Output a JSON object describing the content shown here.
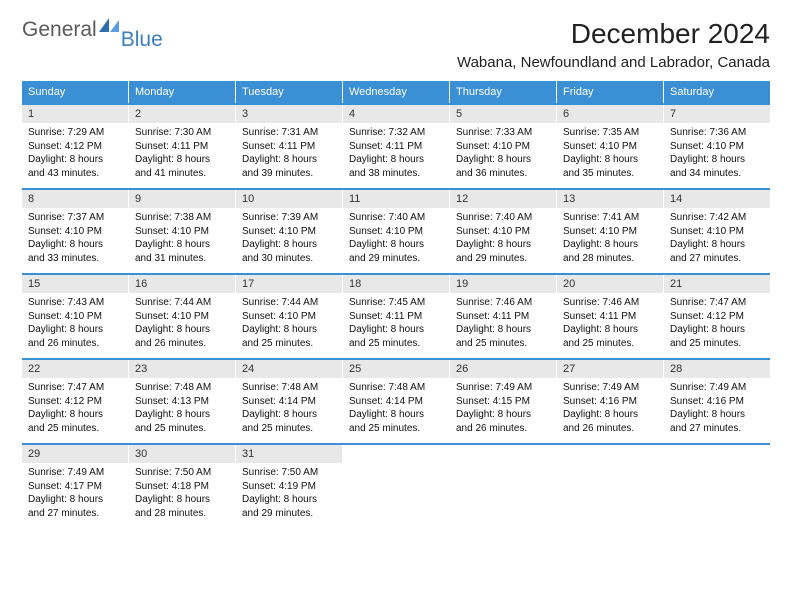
{
  "brand": {
    "text1": "General",
    "text2": "Blue"
  },
  "title": "December 2024",
  "location": "Wabana, Newfoundland and Labrador, Canada",
  "colors": {
    "header_blue": "#3b8fd4",
    "logo_blue": "#3b7fbf",
    "day_num_bg": "#e8e8e8",
    "text": "#111111",
    "bg": "#ffffff"
  },
  "typography": {
    "title_fontsize": 28,
    "location_fontsize": 15,
    "weekday_fontsize": 11,
    "daynum_fontsize": 11,
    "body_fontsize": 10
  },
  "weekdays": [
    "Sunday",
    "Monday",
    "Tuesday",
    "Wednesday",
    "Thursday",
    "Friday",
    "Saturday"
  ],
  "weeks": [
    [
      {
        "num": "1",
        "sunrise": "Sunrise: 7:29 AM",
        "sunset": "Sunset: 4:12 PM",
        "daylight": "Daylight: 8 hours and 43 minutes."
      },
      {
        "num": "2",
        "sunrise": "Sunrise: 7:30 AM",
        "sunset": "Sunset: 4:11 PM",
        "daylight": "Daylight: 8 hours and 41 minutes."
      },
      {
        "num": "3",
        "sunrise": "Sunrise: 7:31 AM",
        "sunset": "Sunset: 4:11 PM",
        "daylight": "Daylight: 8 hours and 39 minutes."
      },
      {
        "num": "4",
        "sunrise": "Sunrise: 7:32 AM",
        "sunset": "Sunset: 4:11 PM",
        "daylight": "Daylight: 8 hours and 38 minutes."
      },
      {
        "num": "5",
        "sunrise": "Sunrise: 7:33 AM",
        "sunset": "Sunset: 4:10 PM",
        "daylight": "Daylight: 8 hours and 36 minutes."
      },
      {
        "num": "6",
        "sunrise": "Sunrise: 7:35 AM",
        "sunset": "Sunset: 4:10 PM",
        "daylight": "Daylight: 8 hours and 35 minutes."
      },
      {
        "num": "7",
        "sunrise": "Sunrise: 7:36 AM",
        "sunset": "Sunset: 4:10 PM",
        "daylight": "Daylight: 8 hours and 34 minutes."
      }
    ],
    [
      {
        "num": "8",
        "sunrise": "Sunrise: 7:37 AM",
        "sunset": "Sunset: 4:10 PM",
        "daylight": "Daylight: 8 hours and 33 minutes."
      },
      {
        "num": "9",
        "sunrise": "Sunrise: 7:38 AM",
        "sunset": "Sunset: 4:10 PM",
        "daylight": "Daylight: 8 hours and 31 minutes."
      },
      {
        "num": "10",
        "sunrise": "Sunrise: 7:39 AM",
        "sunset": "Sunset: 4:10 PM",
        "daylight": "Daylight: 8 hours and 30 minutes."
      },
      {
        "num": "11",
        "sunrise": "Sunrise: 7:40 AM",
        "sunset": "Sunset: 4:10 PM",
        "daylight": "Daylight: 8 hours and 29 minutes."
      },
      {
        "num": "12",
        "sunrise": "Sunrise: 7:40 AM",
        "sunset": "Sunset: 4:10 PM",
        "daylight": "Daylight: 8 hours and 29 minutes."
      },
      {
        "num": "13",
        "sunrise": "Sunrise: 7:41 AM",
        "sunset": "Sunset: 4:10 PM",
        "daylight": "Daylight: 8 hours and 28 minutes."
      },
      {
        "num": "14",
        "sunrise": "Sunrise: 7:42 AM",
        "sunset": "Sunset: 4:10 PM",
        "daylight": "Daylight: 8 hours and 27 minutes."
      }
    ],
    [
      {
        "num": "15",
        "sunrise": "Sunrise: 7:43 AM",
        "sunset": "Sunset: 4:10 PM",
        "daylight": "Daylight: 8 hours and 26 minutes."
      },
      {
        "num": "16",
        "sunrise": "Sunrise: 7:44 AM",
        "sunset": "Sunset: 4:10 PM",
        "daylight": "Daylight: 8 hours and 26 minutes."
      },
      {
        "num": "17",
        "sunrise": "Sunrise: 7:44 AM",
        "sunset": "Sunset: 4:10 PM",
        "daylight": "Daylight: 8 hours and 25 minutes."
      },
      {
        "num": "18",
        "sunrise": "Sunrise: 7:45 AM",
        "sunset": "Sunset: 4:11 PM",
        "daylight": "Daylight: 8 hours and 25 minutes."
      },
      {
        "num": "19",
        "sunrise": "Sunrise: 7:46 AM",
        "sunset": "Sunset: 4:11 PM",
        "daylight": "Daylight: 8 hours and 25 minutes."
      },
      {
        "num": "20",
        "sunrise": "Sunrise: 7:46 AM",
        "sunset": "Sunset: 4:11 PM",
        "daylight": "Daylight: 8 hours and 25 minutes."
      },
      {
        "num": "21",
        "sunrise": "Sunrise: 7:47 AM",
        "sunset": "Sunset: 4:12 PM",
        "daylight": "Daylight: 8 hours and 25 minutes."
      }
    ],
    [
      {
        "num": "22",
        "sunrise": "Sunrise: 7:47 AM",
        "sunset": "Sunset: 4:12 PM",
        "daylight": "Daylight: 8 hours and 25 minutes."
      },
      {
        "num": "23",
        "sunrise": "Sunrise: 7:48 AM",
        "sunset": "Sunset: 4:13 PM",
        "daylight": "Daylight: 8 hours and 25 minutes."
      },
      {
        "num": "24",
        "sunrise": "Sunrise: 7:48 AM",
        "sunset": "Sunset: 4:14 PM",
        "daylight": "Daylight: 8 hours and 25 minutes."
      },
      {
        "num": "25",
        "sunrise": "Sunrise: 7:48 AM",
        "sunset": "Sunset: 4:14 PM",
        "daylight": "Daylight: 8 hours and 25 minutes."
      },
      {
        "num": "26",
        "sunrise": "Sunrise: 7:49 AM",
        "sunset": "Sunset: 4:15 PM",
        "daylight": "Daylight: 8 hours and 26 minutes."
      },
      {
        "num": "27",
        "sunrise": "Sunrise: 7:49 AM",
        "sunset": "Sunset: 4:16 PM",
        "daylight": "Daylight: 8 hours and 26 minutes."
      },
      {
        "num": "28",
        "sunrise": "Sunrise: 7:49 AM",
        "sunset": "Sunset: 4:16 PM",
        "daylight": "Daylight: 8 hours and 27 minutes."
      }
    ],
    [
      {
        "num": "29",
        "sunrise": "Sunrise: 7:49 AM",
        "sunset": "Sunset: 4:17 PM",
        "daylight": "Daylight: 8 hours and 27 minutes."
      },
      {
        "num": "30",
        "sunrise": "Sunrise: 7:50 AM",
        "sunset": "Sunset: 4:18 PM",
        "daylight": "Daylight: 8 hours and 28 minutes."
      },
      {
        "num": "31",
        "sunrise": "Sunrise: 7:50 AM",
        "sunset": "Sunset: 4:19 PM",
        "daylight": "Daylight: 8 hours and 29 minutes."
      },
      null,
      null,
      null,
      null
    ]
  ]
}
